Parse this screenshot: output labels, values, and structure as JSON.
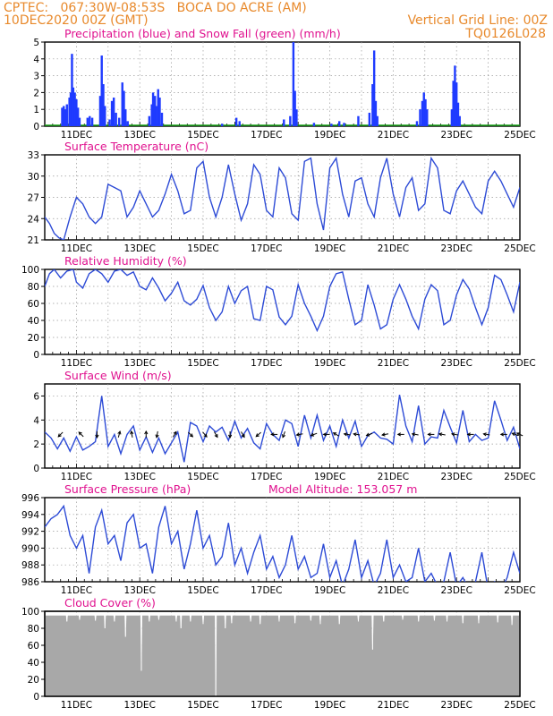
{
  "header": {
    "line1_left": "CPTEC:   067:30W-08:53S   BOCA DO ACRE (AM)",
    "line2_left": "10DEC2020 00Z (GMT)",
    "line2_right": "Vertical Grid Line: 00Z",
    "line3_right": "TQ0126L028"
  },
  "colors": {
    "header": "#e8892b",
    "title": "#e0128f",
    "precip": "#1f3bff",
    "snow": "#19a419",
    "line": "#2d4bd6",
    "cloud": "#a8a8a8",
    "grid": "#9a9a9a"
  },
  "x_ticks": [
    "11DEC",
    "13DEC",
    "15DEC",
    "17DEC",
    "19DEC",
    "21DEC",
    "23DEC",
    "25DEC"
  ],
  "chart_data": [
    {
      "type": "bar",
      "title": "Precipitation (blue) and Snow Fall (green) (mm/h)",
      "ylim": [
        0,
        5
      ],
      "yticks": [
        "0",
        "1",
        "2",
        "3",
        "4",
        "5"
      ],
      "x_unit": "days since 10DEC2020 00Z",
      "series": [
        {
          "name": "Precipitation",
          "points": [
            [
              0.55,
              1.1
            ],
            [
              0.6,
              1.2
            ],
            [
              0.65,
              1.0
            ],
            [
              0.7,
              1.3
            ],
            [
              0.78,
              1.7
            ],
            [
              0.82,
              2.0
            ],
            [
              0.86,
              4.3
            ],
            [
              0.9,
              2.3
            ],
            [
              0.95,
              2.0
            ],
            [
              1.0,
              1.6
            ],
            [
              1.05,
              1.1
            ],
            [
              1.1,
              0.5
            ],
            [
              1.35,
              0.5
            ],
            [
              1.42,
              0.6
            ],
            [
              1.5,
              0.5
            ],
            [
              1.75,
              1.8
            ],
            [
              1.8,
              4.2
            ],
            [
              1.85,
              2.5
            ],
            [
              1.9,
              1.2
            ],
            [
              2.05,
              0.4
            ],
            [
              2.12,
              1.5
            ],
            [
              2.18,
              1.7
            ],
            [
              2.25,
              0.8
            ],
            [
              2.35,
              0.5
            ],
            [
              2.45,
              2.6
            ],
            [
              2.5,
              2.1
            ],
            [
              2.55,
              1.0
            ],
            [
              2.62,
              0.3
            ],
            [
              3.3,
              0.6
            ],
            [
              3.38,
              1.3
            ],
            [
              3.42,
              2.0
            ],
            [
              3.48,
              1.8
            ],
            [
              3.52,
              1.2
            ],
            [
              3.58,
              2.2
            ],
            [
              3.63,
              1.7
            ],
            [
              3.7,
              0.8
            ],
            [
              5.6,
              0.15
            ],
            [
              6.05,
              0.5
            ],
            [
              6.15,
              0.3
            ],
            [
              7.55,
              0.4
            ],
            [
              7.75,
              0.6
            ],
            [
              7.85,
              5.0
            ],
            [
              7.9,
              2.1
            ],
            [
              7.95,
              1.0
            ],
            [
              8.5,
              0.2
            ],
            [
              9.05,
              0.15
            ],
            [
              9.3,
              0.3
            ],
            [
              9.45,
              0.2
            ],
            [
              9.9,
              0.6
            ],
            [
              10.25,
              0.8
            ],
            [
              10.35,
              2.5
            ],
            [
              10.4,
              4.5
            ],
            [
              10.45,
              1.5
            ],
            [
              10.5,
              0.6
            ],
            [
              11.75,
              0.3
            ],
            [
              11.85,
              1.0
            ],
            [
              11.92,
              1.5
            ],
            [
              11.97,
              2.0
            ],
            [
              12.02,
              1.6
            ],
            [
              12.07,
              1.0
            ],
            [
              12.85,
              1.0
            ],
            [
              12.9,
              2.7
            ],
            [
              12.95,
              3.6
            ],
            [
              13.0,
              2.6
            ],
            [
              13.05,
              1.4
            ],
            [
              13.1,
              0.6
            ]
          ]
        },
        {
          "name": "Snow Fall",
          "points": []
        }
      ]
    },
    {
      "type": "line",
      "title": "Surface Temperature (nC)",
      "ylim": [
        21,
        34
      ],
      "yticks": [
        "21",
        "24",
        "27",
        "30",
        "33"
      ],
      "x_unit": "days since 10DEC2020 00Z",
      "x": [
        0,
        0.15,
        0.3,
        0.45,
        0.6,
        0.8,
        1.0,
        1.2,
        1.4,
        1.6,
        1.8,
        2.0,
        2.2,
        2.4,
        2.6,
        2.8,
        3.0,
        3.2,
        3.4,
        3.6,
        3.8,
        4.0,
        4.2,
        4.4,
        4.6,
        4.8,
        5.0,
        5.2,
        5.4,
        5.6,
        5.8,
        6.0,
        6.2,
        6.4,
        6.6,
        6.8,
        7.0,
        7.2,
        7.4,
        7.6,
        7.8,
        8.0,
        8.2,
        8.4,
        8.6,
        8.8,
        9.0,
        9.2,
        9.4,
        9.6,
        9.8,
        10.0,
        10.2,
        10.4,
        10.6,
        10.8,
        11.0,
        11.2,
        11.4,
        11.6,
        11.8,
        12.0,
        12.2,
        12.4,
        12.6,
        12.8,
        13.0,
        13.2,
        13.4,
        13.6,
        13.8,
        14.0,
        14.2,
        14.4,
        14.6,
        14.8,
        15.0
      ],
      "y": [
        24.5,
        23.5,
        22,
        21.3,
        21,
        24.5,
        27.5,
        26.5,
        24.5,
        23.5,
        24.5,
        29.5,
        29,
        28.5,
        24.5,
        26,
        28.5,
        26.5,
        24.5,
        25.5,
        28,
        31,
        28.5,
        25,
        25.5,
        32,
        33,
        27.5,
        24.5,
        27.5,
        32.5,
        28,
        24,
        26.5,
        32.5,
        31,
        25.5,
        24.5,
        32,
        30.5,
        25,
        24,
        33,
        33.5,
        26.5,
        22.5,
        32,
        33.5,
        28,
        24.5,
        30,
        30.5,
        26.5,
        24.5,
        30.5,
        33.5,
        28,
        24.5,
        29,
        30.5,
        25.5,
        26.5,
        33.5,
        32,
        25.5,
        25,
        28.5,
        30,
        28,
        26,
        25,
        30,
        31.5,
        30,
        28,
        26,
        29
      ]
    },
    {
      "type": "line",
      "title": "Relative Humidity (%)",
      "ylim": [
        0,
        100
      ],
      "yticks": [
        "0",
        "20",
        "40",
        "60",
        "80",
        "100"
      ],
      "x_unit": "days since 10DEC2020 00Z",
      "x": [
        0,
        0.15,
        0.3,
        0.5,
        0.7,
        0.9,
        1.0,
        1.2,
        1.4,
        1.6,
        1.8,
        2.0,
        2.2,
        2.4,
        2.6,
        2.8,
        3.0,
        3.2,
        3.4,
        3.6,
        3.8,
        4.0,
        4.2,
        4.4,
        4.6,
        4.8,
        5.0,
        5.2,
        5.4,
        5.6,
        5.8,
        6.0,
        6.2,
        6.4,
        6.6,
        6.8,
        7.0,
        7.2,
        7.4,
        7.6,
        7.8,
        8.0,
        8.2,
        8.4,
        8.6,
        8.8,
        9.0,
        9.2,
        9.4,
        9.6,
        9.8,
        10.0,
        10.2,
        10.4,
        10.6,
        10.8,
        11.0,
        11.2,
        11.4,
        11.6,
        11.8,
        12.0,
        12.2,
        12.4,
        12.6,
        12.8,
        13.0,
        13.2,
        13.4,
        13.6,
        13.8,
        14.0,
        14.2,
        14.4,
        14.6,
        14.8,
        15.0
      ],
      "y": [
        80,
        95,
        100,
        90,
        98,
        100,
        85,
        78,
        95,
        100,
        95,
        85,
        98,
        100,
        93,
        97,
        80,
        76,
        90,
        78,
        63,
        72,
        85,
        63,
        58,
        65,
        81,
        55,
        40,
        50,
        80,
        60,
        75,
        80,
        42,
        40,
        80,
        76,
        44,
        35,
        45,
        82,
        60,
        45,
        28,
        45,
        80,
        95,
        97,
        65,
        35,
        40,
        82,
        58,
        30,
        35,
        65,
        82,
        65,
        45,
        30,
        65,
        82,
        75,
        35,
        40,
        70,
        88,
        77,
        55,
        35,
        55,
        93,
        88,
        70,
        50,
        85
      ]
    },
    {
      "type": "line",
      "title": "Surface Wind (m/s)",
      "ylim": [
        0,
        7
      ],
      "yticks": [
        "0",
        "2",
        "4",
        "6"
      ],
      "x_unit": "days since 10DEC2020 00Z",
      "x": [
        0,
        0.2,
        0.4,
        0.6,
        0.8,
        1.0,
        1.2,
        1.4,
        1.6,
        1.8,
        2.0,
        2.2,
        2.4,
        2.6,
        2.8,
        3.0,
        3.2,
        3.4,
        3.6,
        3.8,
        4.0,
        4.2,
        4.4,
        4.6,
        4.8,
        5.0,
        5.2,
        5.4,
        5.6,
        5.8,
        6.0,
        6.2,
        6.4,
        6.6,
        6.8,
        7.0,
        7.2,
        7.4,
        7.6,
        7.8,
        8.0,
        8.2,
        8.4,
        8.6,
        8.8,
        9.0,
        9.2,
        9.4,
        9.6,
        9.8,
        10.0,
        10.2,
        10.4,
        10.6,
        10.8,
        11.0,
        11.2,
        11.4,
        11.6,
        11.8,
        12.0,
        12.2,
        12.4,
        12.6,
        12.8,
        13.0,
        13.2,
        13.4,
        13.6,
        13.8,
        14.0,
        14.2,
        14.4,
        14.6,
        14.8,
        15.0
      ],
      "y": [
        3,
        2.5,
        1.6,
        2.5,
        1.4,
        2.6,
        1.5,
        1.8,
        2.2,
        6,
        1.8,
        2.8,
        1.2,
        2.8,
        3.5,
        1.5,
        2.6,
        1.3,
        2.5,
        1.2,
        2.1,
        3,
        0.5,
        3.8,
        3.5,
        2.2,
        3.5,
        3,
        3.4,
        2.3,
        3.9,
        2.5,
        3.3,
        2.1,
        1.6,
        3.7,
        2.8,
        2.3,
        4,
        3.7,
        1.8,
        4.4,
        2.5,
        4.4,
        2.3,
        3.5,
        1.8,
        4,
        2.5,
        3.9,
        1.8,
        2.7,
        3,
        2.5,
        2.4,
        2,
        6.1,
        3.5,
        2.2,
        5.2,
        2,
        2.6,
        2.5,
        4.8,
        3.4,
        2.1,
        4.8,
        2.2,
        2.8,
        2.3,
        2.5,
        5.6,
        4,
        2.3,
        3.4,
        1.6
      ],
      "arrows": [
        [
          0.5,
          225
        ],
        [
          1.15,
          135
        ],
        [
          1.65,
          270
        ],
        [
          2.35,
          75
        ],
        [
          2.75,
          100
        ],
        [
          3.2,
          90
        ],
        [
          3.55,
          260
        ],
        [
          4.1,
          60
        ],
        [
          4.6,
          315
        ],
        [
          5.05,
          310
        ],
        [
          5.4,
          300
        ],
        [
          5.85,
          270
        ],
        [
          6.25,
          300
        ],
        [
          6.75,
          220
        ],
        [
          7.25,
          180
        ],
        [
          7.55,
          250
        ],
        [
          8.05,
          190
        ],
        [
          8.5,
          200
        ],
        [
          8.9,
          180
        ],
        [
          9.2,
          150
        ],
        [
          9.55,
          170
        ],
        [
          9.85,
          170
        ],
        [
          10.25,
          200
        ],
        [
          10.75,
          190
        ],
        [
          11.25,
          180
        ],
        [
          11.7,
          170
        ],
        [
          12.2,
          180
        ],
        [
          12.55,
          170
        ],
        [
          12.95,
          170
        ],
        [
          13.45,
          180
        ],
        [
          13.95,
          170
        ],
        [
          14.5,
          180
        ],
        [
          14.85,
          160
        ],
        [
          15.0,
          155
        ]
      ]
    },
    {
      "type": "line",
      "title": "Surface Pressure (hPa)",
      "annotation": "Model Altitude: 153.057 m",
      "ylim": [
        986,
        996
      ],
      "yticks": [
        "986",
        "988",
        "990",
        "992",
        "994",
        "996"
      ],
      "x_unit": "days since 10DEC2020 00Z",
      "x": [
        0,
        0.2,
        0.4,
        0.6,
        0.8,
        1.0,
        1.2,
        1.4,
        1.6,
        1.8,
        2.0,
        2.2,
        2.4,
        2.6,
        2.8,
        3.0,
        3.2,
        3.4,
        3.6,
        3.8,
        4.0,
        4.2,
        4.4,
        4.6,
        4.8,
        5.0,
        5.2,
        5.4,
        5.6,
        5.8,
        6.0,
        6.2,
        6.4,
        6.6,
        6.8,
        7.0,
        7.2,
        7.4,
        7.6,
        7.8,
        8.0,
        8.2,
        8.4,
        8.6,
        8.8,
        9.0,
        9.2,
        9.4,
        9.6,
        9.8,
        10.0,
        10.2,
        10.4,
        10.6,
        10.8,
        11.0,
        11.2,
        11.4,
        11.6,
        11.8,
        12.0,
        12.2,
        12.4,
        12.6,
        12.8,
        13.0,
        13.2,
        13.4,
        13.6,
        13.8,
        14.0,
        14.2,
        14.4,
        14.6,
        14.8,
        15.0
      ],
      "y": [
        992.5,
        993.5,
        994,
        995,
        991.5,
        990,
        991.5,
        987,
        992.5,
        994.5,
        990.5,
        991.5,
        988.5,
        993,
        994,
        990,
        990.5,
        987,
        992.5,
        995,
        990.5,
        992,
        987.5,
        990.5,
        994.5,
        990,
        991.5,
        988,
        989,
        993,
        988,
        990,
        987,
        989.5,
        991.5,
        987.5,
        989,
        986.5,
        988,
        991.5,
        987.5,
        989,
        986.5,
        987,
        990.5,
        986.5,
        988.5,
        985.5,
        987.5,
        991,
        986.5,
        988.5,
        985.5,
        987,
        991,
        986.5,
        988,
        986,
        986.5,
        990,
        986,
        987,
        985.5,
        986,
        989.5,
        985.5,
        986.5,
        985,
        986,
        989.5,
        985,
        986,
        985,
        986.5,
        989.5,
        987
      ]
    },
    {
      "type": "bar",
      "title": "Cloud Cover (%)",
      "ylim": [
        0,
        100
      ],
      "yticks": [
        "0",
        "20",
        "40",
        "60",
        "80",
        "100"
      ],
      "x_unit": "days since 10DEC2020 00Z",
      "baseline": 95,
      "dips": [
        [
          0.7,
          88
        ],
        [
          1.1,
          90
        ],
        [
          1.6,
          89
        ],
        [
          1.9,
          80
        ],
        [
          2.2,
          88
        ],
        [
          2.55,
          70
        ],
        [
          3.05,
          30
        ],
        [
          3.3,
          88
        ],
        [
          3.6,
          90
        ],
        [
          4.15,
          88
        ],
        [
          4.3,
          80
        ],
        [
          4.6,
          88
        ],
        [
          5.0,
          85
        ],
        [
          5.4,
          0
        ],
        [
          5.7,
          80
        ],
        [
          5.9,
          86
        ],
        [
          6.5,
          88
        ],
        [
          6.8,
          85
        ],
        [
          7.4,
          88
        ],
        [
          7.9,
          86
        ],
        [
          8.4,
          89
        ],
        [
          8.7,
          85
        ],
        [
          9.3,
          85
        ],
        [
          9.9,
          88
        ],
        [
          10.35,
          55
        ],
        [
          10.7,
          88
        ],
        [
          11.3,
          90
        ],
        [
          11.8,
          88
        ],
        [
          12.3,
          89
        ],
        [
          12.7,
          88
        ],
        [
          13.2,
          86
        ],
        [
          13.7,
          86
        ],
        [
          14.3,
          87
        ],
        [
          14.75,
          84
        ]
      ]
    }
  ]
}
